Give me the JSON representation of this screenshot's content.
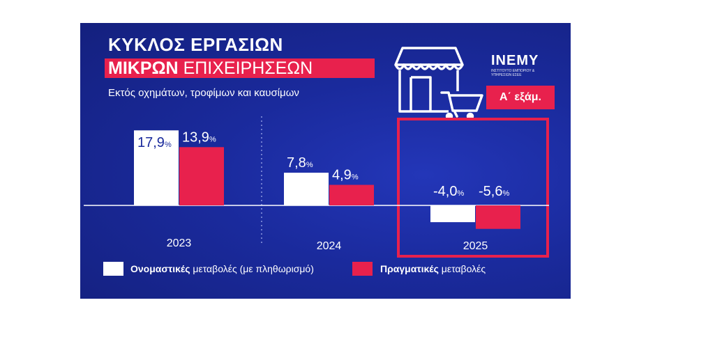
{
  "title_line1": "ΚΥΚΛΟΣ ΕΡΓΑΣΙΩΝ",
  "title_line2_bold": "ΜΙΚΡΩΝ",
  "title_line2_rest": "ΕΠΙΧΕΙΡΗΣΕΩΝ",
  "subtitle": "Εκτός οχημάτων, τροφίμων και καυσίμων",
  "logo": {
    "name": "INEMY",
    "tagline": "ΙΝΣΤΙΤΟΥΤΟ ΕΜΠΟΡΙΟΥ & ΥΠΗΡΕΣΙΩΝ ΕΣΕΕ"
  },
  "badge": "Α΄ εξάμ.",
  "legend": {
    "nominal_bold": "Ονομαστικές",
    "nominal_rest": "μεταβολές (με πληθωρισμό)",
    "real_bold": "Πραγματικές",
    "real_rest": "μεταβολές"
  },
  "colors": {
    "background": "#1a2a9c",
    "accent": "#e8214d",
    "nominal": "#ffffff"
  },
  "icons": [
    "shop-icon",
    "shopping-cart-icon"
  ],
  "chart_data": {
    "type": "bar",
    "categories": [
      "2023",
      "2024",
      "2025"
    ],
    "series": [
      {
        "name": "Ονομαστικές",
        "values": [
          17.9,
          7.8,
          -4.0
        ],
        "labels": [
          "17,9%",
          "7,8%",
          "-4,0%"
        ]
      },
      {
        "name": "Πραγματικές",
        "values": [
          13.9,
          4.9,
          -5.6
        ],
        "labels": [
          "13,9%",
          "4,9%",
          "-5,6%"
        ]
      }
    ],
    "highlight_category": "2025"
  }
}
